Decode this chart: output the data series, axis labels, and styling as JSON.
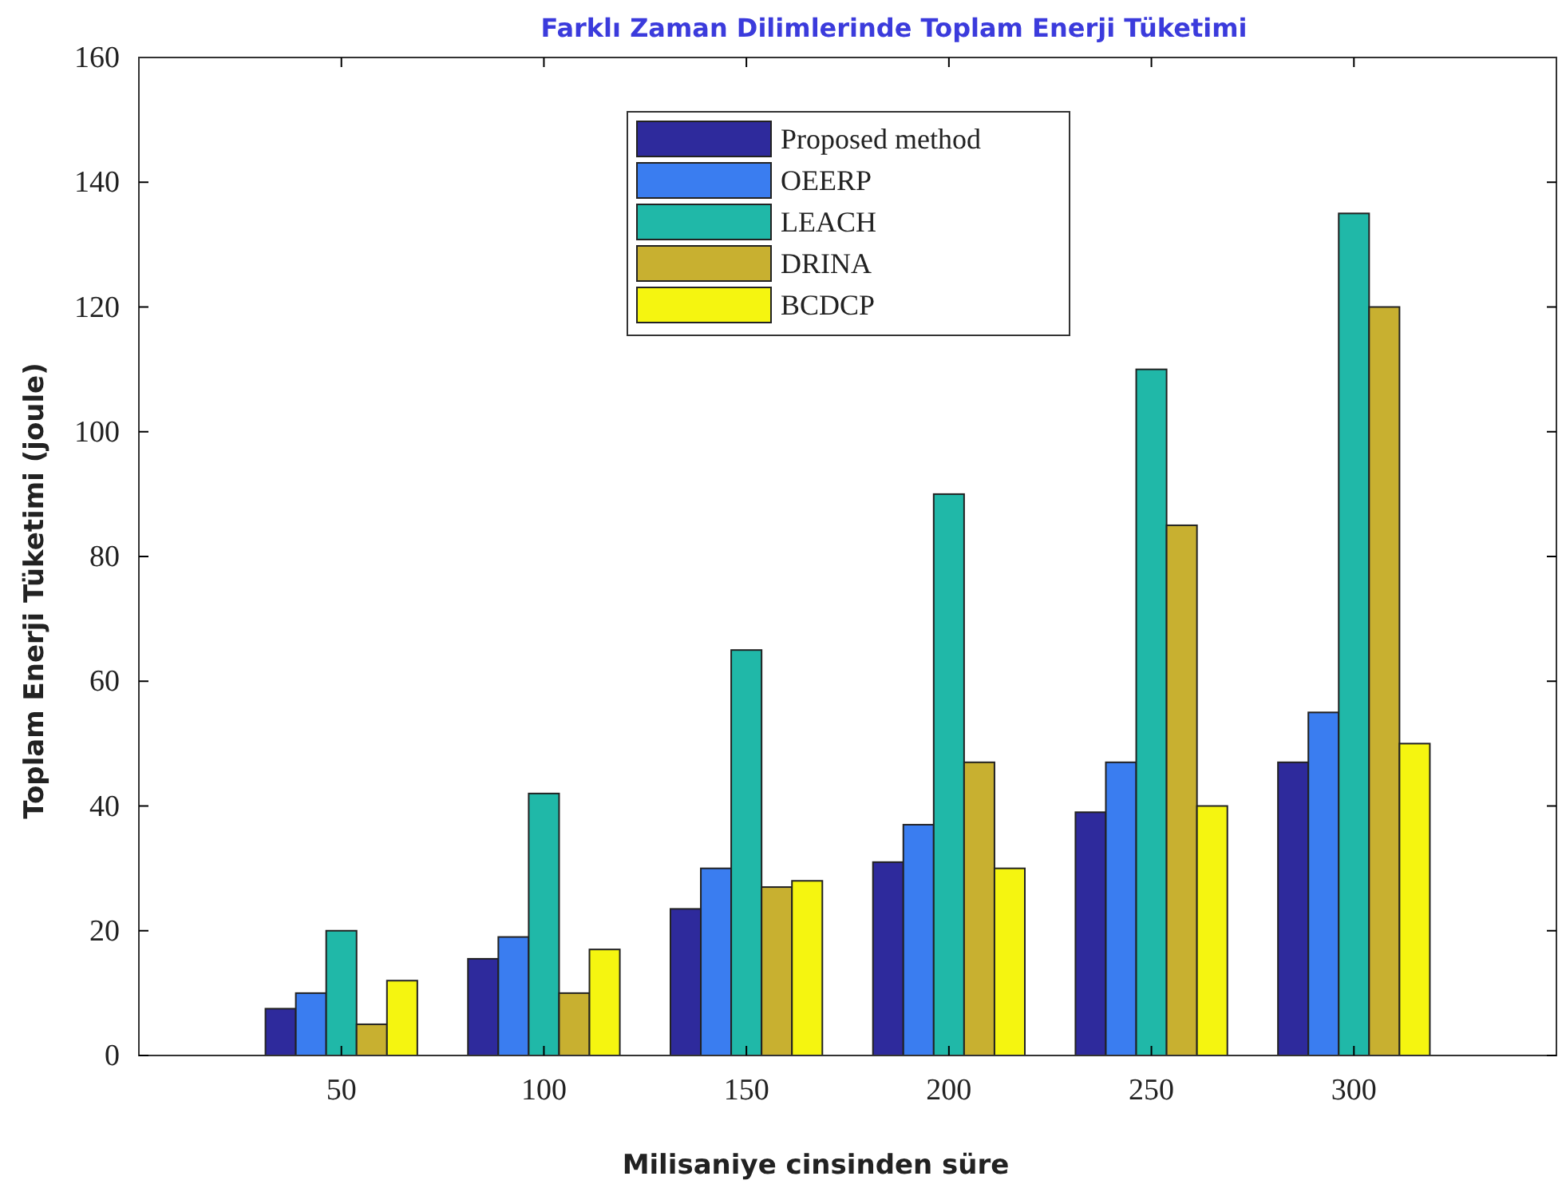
{
  "chart_data": {
    "type": "bar",
    "title": "Farklı Zaman Dilimlerinde Toplam Enerji Tüketimi",
    "xlabel": "Milisaniye cinsinden süre",
    "ylabel": "Toplam Enerji Tüketimi (joule)",
    "x": [
      50,
      100,
      150,
      200,
      250,
      300
    ],
    "series": [
      {
        "name": "Proposed method",
        "color": "#2e2a9c",
        "values": [
          7.5,
          15.5,
          23.5,
          31,
          39,
          47
        ]
      },
      {
        "name": "OEERP",
        "color": "#3a7df0",
        "values": [
          10,
          19,
          30,
          37,
          47,
          55
        ]
      },
      {
        "name": "LEACH",
        "color": "#20b8a8",
        "values": [
          20,
          42,
          65,
          90,
          110,
          135
        ]
      },
      {
        "name": "DRINA",
        "color": "#c8b030",
        "values": [
          5,
          10,
          27,
          47,
          85,
          120
        ]
      },
      {
        "name": "BCDCP",
        "color": "#f5f510",
        "values": [
          12,
          17,
          28,
          30,
          40,
          50
        ]
      }
    ],
    "xlim": [
      0,
      350
    ],
    "xticks": [
      50,
      100,
      150,
      200,
      250,
      300
    ],
    "ylim": [
      0,
      160
    ],
    "yticks": [
      0,
      20,
      40,
      60,
      80,
      100,
      120,
      140,
      160
    ],
    "grid": false,
    "legend": "top"
  }
}
